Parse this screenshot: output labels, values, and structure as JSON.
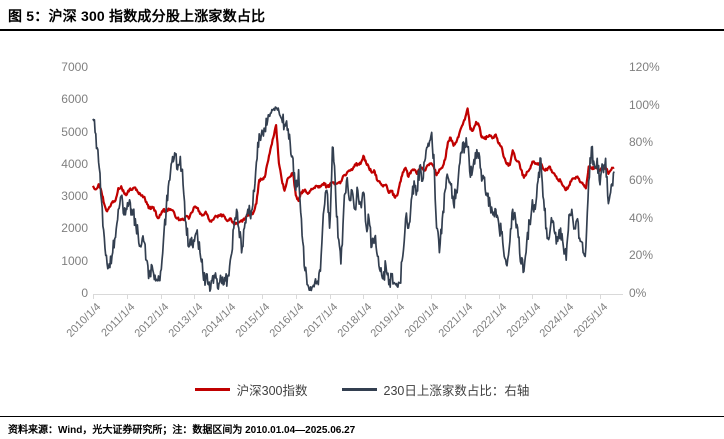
{
  "header": {
    "title": "图 5：沪深 300 指数成分股上涨家数占比"
  },
  "footer": {
    "text": "资料来源：Wind，光大证券研究所；注：数据区间为 2010.01.04—2025.06.27"
  },
  "colors": {
    "red_series": "#C00000",
    "navy_series": "#333F50",
    "axis_text": "#7f7f7f",
    "axis_line": "#d9d9d9",
    "title_text": "#000000"
  },
  "chart_data": {
    "type": "line",
    "title": "图 5：沪深 300 指数成分股上涨家数占比",
    "grid": "off",
    "legend_position": "bottom",
    "x_start_year": 2010,
    "x_tick_labels": [
      "2010/1/4",
      "2011/1/4",
      "2012/1/4",
      "2013/1/4",
      "2014/1/4",
      "2015/1/4",
      "2016/1/4",
      "2017/1/4",
      "2018/1/4",
      "2019/1/4",
      "2020/1/4",
      "2021/1/4",
      "2022/1/4",
      "2023/1/4",
      "2024/1/4",
      "2025/1/4"
    ],
    "y_left": {
      "min": 0,
      "max": 7000,
      "ticks": [
        0,
        1000,
        2000,
        3000,
        4000,
        5000,
        6000,
        7000
      ]
    },
    "y_right": {
      "min": 0,
      "max": 120,
      "ticks": [
        0,
        20,
        40,
        60,
        80,
        100,
        120
      ],
      "suffix": "%"
    },
    "series": [
      {
        "name": "沪深300指数",
        "axis": "left",
        "color": "#C00000",
        "jitter": 45,
        "values": [
          3350,
          3240,
          3400,
          3180,
          2780,
          2560,
          2700,
          2870,
          2900,
          3280,
          3340,
          3130,
          3080,
          3250,
          3230,
          3300,
          3150,
          3050,
          3010,
          2850,
          2650,
          2700,
          2590,
          2350,
          2450,
          2620,
          2550,
          2640,
          2600,
          2460,
          2340,
          2290,
          2300,
          2400,
          2330,
          2520,
          2700,
          2670,
          2480,
          2450,
          2550,
          2330,
          2240,
          2350,
          2410,
          2420,
          2450,
          2330,
          2280,
          2340,
          2170,
          2200,
          2230,
          2240,
          2340,
          2450,
          2480,
          2530,
          2800,
          3530,
          3540,
          3620,
          4060,
          4480,
          4840,
          5230,
          4050,
          3550,
          3200,
          3550,
          3640,
          3730,
          3060,
          2880,
          3150,
          3210,
          3130,
          3190,
          3250,
          3340,
          3300,
          3340,
          3440,
          3310,
          3360,
          3450,
          3440,
          3440,
          3480,
          3670,
          3720,
          3830,
          3840,
          4010,
          4020,
          4030,
          4280,
          4050,
          3900,
          3760,
          3800,
          3510,
          3430,
          3330,
          3390,
          3130,
          3200,
          3010,
          3050,
          3450,
          3770,
          3910,
          3630,
          3820,
          3860,
          3720,
          3850,
          3890,
          3830,
          4000,
          4050,
          3940,
          3680,
          3860,
          3910,
          4160,
          4700,
          4840,
          4590,
          4700,
          4960,
          5210,
          5400,
          5750,
          5100,
          5080,
          5330,
          5220,
          4850,
          4810,
          4870,
          4890,
          4840,
          4940,
          4660,
          4570,
          4220,
          4020,
          4000,
          4450,
          4170,
          4110,
          3850,
          3600,
          3780,
          3870,
          4100,
          4030,
          4050,
          4030,
          3860,
          3840,
          3950,
          3770,
          3690,
          3560,
          3500,
          3340,
          3220,
          3360,
          3540,
          3590,
          3640,
          3460,
          3390,
          3270,
          3950,
          3890,
          3920,
          3930,
          3830,
          3900,
          3930,
          3720,
          3850,
          3920
        ]
      },
      {
        "name": "230日上涨家数占比：右轴",
        "axis": "right",
        "color": "#333F50",
        "jitter": 4.5,
        "values": [
          93,
          85,
          70,
          50,
          30,
          16,
          14,
          22,
          30,
          45,
          52,
          42,
          45,
          50,
          42,
          40,
          32,
          25,
          28,
          18,
          10,
          15,
          10,
          7,
          12,
          28,
          45,
          60,
          70,
          75,
          66,
          73,
          58,
          38,
          25,
          30,
          28,
          34,
          22,
          12,
          8,
          5,
          7,
          10,
          8,
          6,
          9,
          7,
          10,
          20,
          35,
          45,
          30,
          25,
          38,
          45,
          40,
          55,
          70,
          85,
          87,
          88,
          92,
          96,
          98,
          99,
          97,
          93,
          90,
          87,
          80,
          72,
          55,
          66,
          40,
          15,
          5,
          2,
          4,
          8,
          5,
          20,
          45,
          55,
          35,
          78,
          60,
          30,
          16,
          45,
          60,
          50,
          55,
          45,
          55,
          48,
          54,
          36,
          40,
          25,
          30,
          20,
          12,
          8,
          15,
          5,
          10,
          6,
          4,
          6,
          20,
          40,
          35,
          50,
          60,
          55,
          68,
          60,
          72,
          80,
          84,
          74,
          35,
          22,
          40,
          55,
          62,
          58,
          48,
          55,
          68,
          75,
          80,
          78,
          62,
          68,
          72,
          75,
          60,
          62,
          52,
          48,
          42,
          45,
          38,
          32,
          20,
          15,
          28,
          45,
          40,
          30,
          16,
          12,
          28,
          38,
          50,
          45,
          60,
          72,
          50,
          35,
          30,
          38,
          32,
          28,
          35,
          25,
          18,
          42,
          45,
          35,
          40,
          28,
          22,
          25,
          60,
          78,
          68,
          72,
          58,
          68,
          72,
          48,
          58,
          65
        ]
      }
    ]
  }
}
